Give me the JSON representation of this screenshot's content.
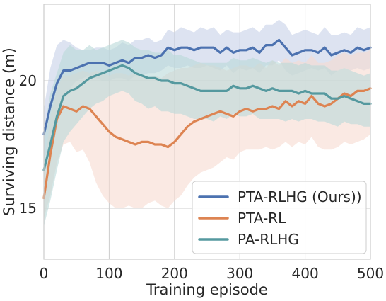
{
  "chart_data": {
    "type": "line",
    "xlabel": "Training episode",
    "ylabel": "Surviving distance (m)",
    "xlim": [
      0,
      500
    ],
    "ylim": [
      13,
      23
    ],
    "xticks": [
      0,
      100,
      200,
      300,
      400,
      500
    ],
    "yticks": [
      15,
      20
    ],
    "grid": true,
    "legend_position": "lower-right",
    "x": [
      0,
      10,
      20,
      30,
      40,
      50,
      60,
      70,
      80,
      90,
      100,
      110,
      120,
      130,
      140,
      150,
      160,
      170,
      180,
      190,
      200,
      210,
      220,
      230,
      240,
      250,
      260,
      270,
      280,
      290,
      300,
      310,
      320,
      330,
      340,
      350,
      360,
      370,
      380,
      390,
      400,
      410,
      420,
      430,
      440,
      450,
      460,
      470,
      480,
      490,
      500
    ],
    "series": [
      {
        "name": "PTA-RLHG (Ours))",
        "color": "#4c72b0",
        "band_color": "#c7d1e8",
        "values": [
          17.9,
          19.0,
          19.9,
          20.4,
          20.4,
          20.5,
          20.6,
          20.7,
          20.7,
          20.7,
          20.6,
          20.7,
          20.8,
          20.7,
          20.9,
          20.9,
          21.0,
          20.9,
          21.0,
          21.3,
          21.2,
          21.3,
          21.3,
          21.2,
          21.3,
          21.3,
          21.3,
          21.1,
          21.3,
          21.1,
          21.2,
          21.2,
          21.3,
          21.1,
          21.4,
          21.4,
          21.6,
          21.3,
          21.0,
          21.1,
          21.2,
          21.2,
          21.1,
          21.3,
          21.0,
          21.1,
          21.2,
          21.1,
          21.3,
          21.2,
          21.3
        ],
        "lower": [
          16.9,
          17.5,
          18.4,
          19.2,
          19.7,
          20.0,
          20.1,
          20.2,
          20.1,
          20.0,
          20.0,
          20.1,
          20.1,
          20.0,
          20.2,
          20.2,
          20.3,
          20.3,
          20.4,
          20.6,
          20.5,
          20.5,
          20.6,
          20.5,
          20.5,
          20.6,
          20.5,
          20.4,
          20.6,
          20.3,
          20.5,
          20.4,
          20.5,
          20.3,
          20.6,
          20.6,
          20.8,
          20.4,
          20.2,
          20.3,
          20.4,
          20.5,
          20.4,
          20.5,
          20.2,
          20.4,
          20.5,
          20.4,
          20.5,
          20.4,
          20.5
        ],
        "upper": [
          18.9,
          20.5,
          21.4,
          21.6,
          21.5,
          21.3,
          21.2,
          21.2,
          21.3,
          21.3,
          21.2,
          21.3,
          21.5,
          21.4,
          21.6,
          21.6,
          21.7,
          21.5,
          21.6,
          22.0,
          21.9,
          22.1,
          22.0,
          21.9,
          22.1,
          22.0,
          22.1,
          21.8,
          22.0,
          21.9,
          21.9,
          22.0,
          22.1,
          21.9,
          22.2,
          22.2,
          22.4,
          22.2,
          21.8,
          21.9,
          22.0,
          21.9,
          21.8,
          22.1,
          21.8,
          21.8,
          21.9,
          21.8,
          22.1,
          22.0,
          22.1
        ]
      },
      {
        "name": "PTA-RL",
        "color": "#dd8452",
        "band_color": "#f6dbd0",
        "values": [
          15.4,
          17.1,
          18.5,
          19.0,
          18.9,
          18.8,
          19.0,
          18.9,
          18.6,
          18.3,
          18.0,
          17.8,
          17.7,
          17.6,
          17.5,
          17.6,
          17.6,
          17.5,
          17.5,
          17.4,
          17.6,
          17.9,
          18.2,
          18.4,
          18.5,
          18.6,
          18.7,
          18.8,
          18.7,
          18.6,
          18.8,
          18.9,
          18.8,
          18.9,
          18.9,
          19.0,
          18.9,
          19.2,
          19.0,
          19.2,
          19.1,
          19.4,
          19.1,
          19.0,
          19.1,
          19.3,
          19.5,
          19.4,
          19.6,
          19.6,
          19.7
        ],
        "lower": [
          14.6,
          15.5,
          16.8,
          17.5,
          17.6,
          17.2,
          17.3,
          16.8,
          16.0,
          15.5,
          15.2,
          15.0,
          15.0,
          15.1,
          15.0,
          15.0,
          15.2,
          15.3,
          15.1,
          15.0,
          15.3,
          15.5,
          15.9,
          16.2,
          16.4,
          16.5,
          16.6,
          16.8,
          17.0,
          16.9,
          17.2,
          17.3,
          17.3,
          17.3,
          17.4,
          17.3,
          17.4,
          17.6,
          17.4,
          17.6,
          17.5,
          17.8,
          17.4,
          17.3,
          17.3,
          17.4,
          17.6,
          17.5,
          17.6,
          17.7,
          17.9
        ],
        "upper": [
          16.3,
          18.6,
          19.7,
          20.2,
          20.2,
          20.3,
          20.4,
          20.3,
          20.4,
          20.3,
          20.2,
          20.3,
          20.3,
          20.2,
          20.3,
          20.2,
          20.1,
          20.2,
          20.1,
          20.3,
          20.4,
          20.5,
          20.5,
          20.6,
          20.7,
          20.6,
          20.6,
          20.5,
          20.4,
          20.5,
          20.6,
          20.6,
          20.5,
          20.7,
          20.5,
          20.8,
          20.6,
          20.9,
          20.7,
          20.8,
          20.7,
          21.0,
          20.7,
          20.7,
          20.8,
          21.0,
          21.1,
          21.0,
          21.1,
          21.1,
          21.2
        ]
      },
      {
        "name": "PA-RLHG",
        "color": "#55999f",
        "band_color": "#b9d8d9",
        "values": [
          16.5,
          17.5,
          18.6,
          19.4,
          19.6,
          19.7,
          19.9,
          20.1,
          20.2,
          20.3,
          20.4,
          20.5,
          20.6,
          20.5,
          20.3,
          20.2,
          20.1,
          20.1,
          20.0,
          20.0,
          19.9,
          19.9,
          19.8,
          19.7,
          19.6,
          19.6,
          19.6,
          19.6,
          19.6,
          19.8,
          19.7,
          19.7,
          19.8,
          19.7,
          19.6,
          19.7,
          19.6,
          19.6,
          19.6,
          19.5,
          19.6,
          19.5,
          19.5,
          19.5,
          19.3,
          19.3,
          19.4,
          19.3,
          19.2,
          19.1,
          19.1
        ],
        "lower": [
          14.3,
          15.3,
          16.5,
          17.6,
          18.0,
          18.3,
          18.6,
          18.9,
          19.1,
          19.2,
          19.4,
          19.5,
          19.6,
          19.5,
          19.2,
          19.1,
          18.9,
          19.0,
          18.8,
          18.8,
          18.7,
          18.7,
          18.6,
          18.5,
          18.5,
          18.5,
          18.4,
          18.6,
          18.5,
          18.7,
          18.6,
          18.6,
          18.7,
          18.5,
          18.5,
          18.5,
          18.5,
          18.4,
          18.5,
          18.4,
          18.5,
          18.5,
          18.4,
          18.4,
          18.3,
          18.2,
          18.4,
          18.3,
          18.3,
          18.2,
          18.2
        ],
        "upper": [
          18.0,
          19.5,
          20.3,
          21.1,
          21.4,
          21.2,
          21.2,
          21.4,
          21.2,
          21.3,
          21.4,
          21.5,
          21.6,
          21.5,
          21.3,
          21.2,
          21.2,
          21.1,
          21.1,
          21.2,
          21.0,
          21.0,
          20.9,
          20.8,
          20.7,
          20.7,
          20.7,
          20.7,
          20.7,
          20.9,
          20.8,
          20.8,
          20.9,
          20.8,
          20.7,
          20.8,
          20.7,
          20.7,
          20.7,
          20.6,
          20.7,
          20.6,
          20.6,
          20.6,
          20.4,
          20.4,
          20.5,
          20.4,
          20.3,
          20.2,
          20.3
        ]
      }
    ]
  },
  "style": {
    "grid_color": "#cccccc",
    "axis_color": "#cccccc",
    "legend_border": "#cccccc"
  }
}
